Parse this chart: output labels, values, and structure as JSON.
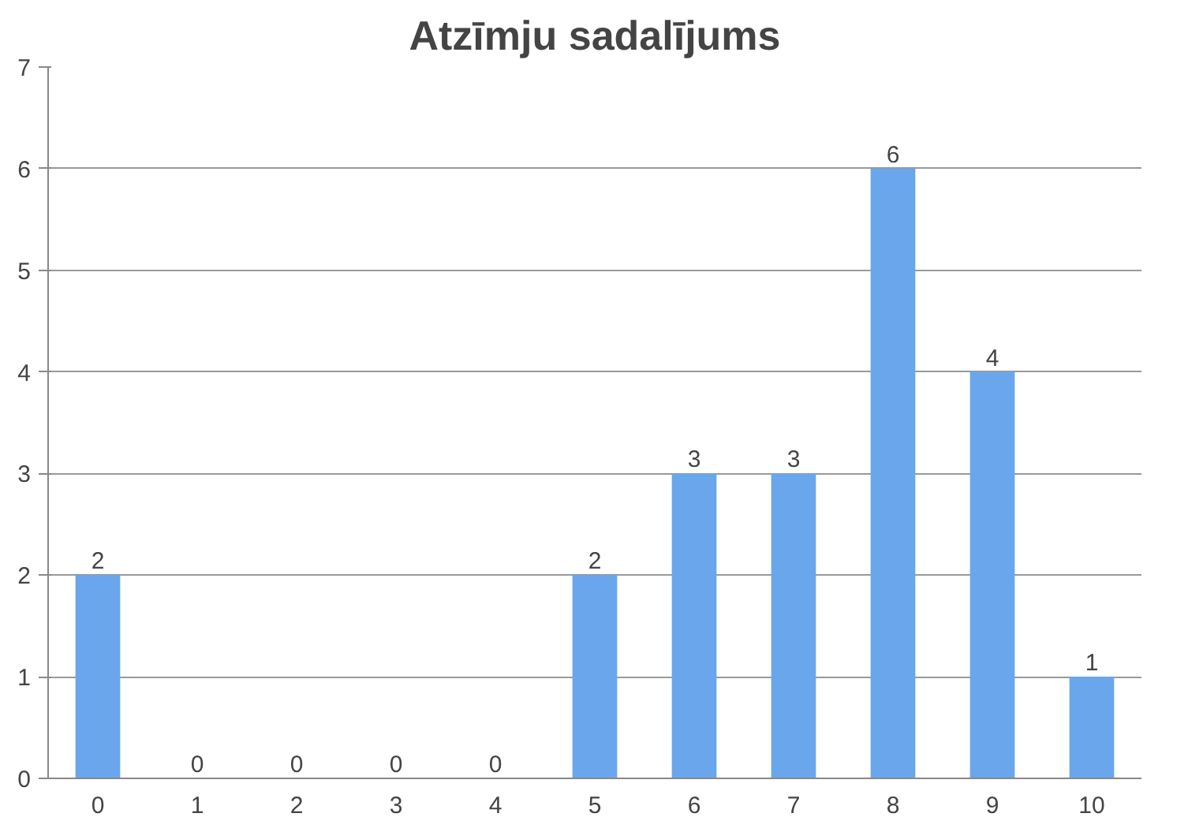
{
  "chart_data": {
    "type": "bar",
    "title": "Atzīmju sadalījums",
    "categories": [
      "0",
      "1",
      "2",
      "3",
      "4",
      "5",
      "6",
      "7",
      "8",
      "9",
      "10"
    ],
    "values": [
      2,
      0,
      0,
      0,
      0,
      2,
      3,
      3,
      6,
      4,
      1
    ],
    "color": "#6aa6ec",
    "ylim": [
      0,
      7
    ],
    "yticks": [
      0,
      1,
      2,
      3,
      4,
      5,
      6,
      7
    ],
    "grid": "y",
    "data_labels": true
  }
}
